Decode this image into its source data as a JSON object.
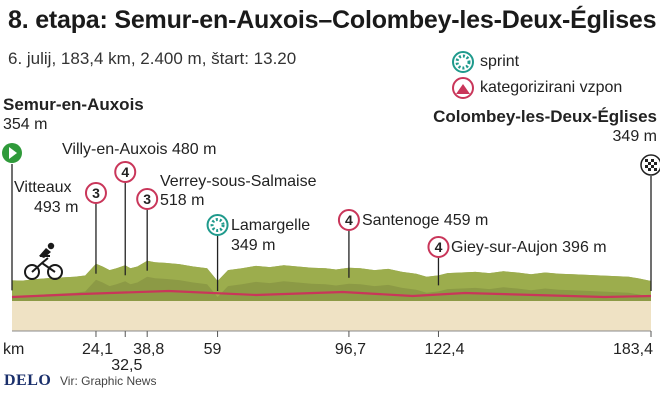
{
  "header": {
    "title": "8. etapa: Semur-en-Auxois–Colombey-les-Deux-Églises",
    "subtitle": "6. julij, 183,4 km, 2.400 m, štart: 13.20"
  },
  "legend": {
    "sprint": "sprint",
    "climb": "kategorizirani vzpon"
  },
  "start": {
    "name": "Semur-en-Auxois",
    "alt": "354 m"
  },
  "finish": {
    "name": "Colombey-les-Deux-Églises",
    "alt": "349 m"
  },
  "points": [
    {
      "name": "Vitteaux",
      "alt": "493 m",
      "cat": "3"
    },
    {
      "name": "Villy-en-Auxois 480 m",
      "cat": "4"
    },
    {
      "name": "Verrey-sous-Salmaise",
      "alt": "518 m",
      "cat": "3"
    },
    {
      "name": "Lamargelle",
      "alt": "349 m"
    },
    {
      "name": "Santenoge 459 m",
      "cat": "4"
    },
    {
      "name": "Giey-sur-Aujon 396 m",
      "cat": "4"
    }
  ],
  "axis": {
    "unit": "km",
    "ticks": [
      "24,1",
      "32,5",
      "38,8",
      "59",
      "96,7",
      "122,4",
      "183,4"
    ]
  },
  "footer": {
    "logo": "DELO",
    "source": "Vir: Graphic News"
  },
  "colors": {
    "profile_band": "#8c9a45",
    "profile_top": "#9fb04f",
    "ground": "#efe2c4",
    "route_line": "#c9365a",
    "sprint": "#1f9a8c",
    "climb": "#c9365a"
  },
  "chart_data": {
    "type": "area",
    "title": "8. etapa: Semur-en-Auxois–Colombey-les-Deux-Églises",
    "xlabel": "km",
    "ylabel": "",
    "xlim": [
      0,
      183.4
    ],
    "markers": [
      {
        "km": 24.1,
        "name": "Vitteaux",
        "alt_m": 493,
        "kind": "climb",
        "category": 3
      },
      {
        "km": 32.5,
        "name": "Villy-en-Auxois",
        "alt_m": 480,
        "kind": "climb",
        "category": 4
      },
      {
        "km": 38.8,
        "name": "Verrey-sous-Salmaise",
        "alt_m": 518,
        "kind": "climb",
        "category": 3
      },
      {
        "km": 59,
        "name": "Lamargelle",
        "alt_m": 349,
        "kind": "sprint"
      },
      {
        "km": 96.7,
        "name": "Santenoge",
        "alt_m": 459,
        "kind": "climb",
        "category": 4
      },
      {
        "km": 122.4,
        "name": "Giey-sur-Aujon",
        "alt_m": 396,
        "kind": "climb",
        "category": 4
      },
      {
        "km": 0,
        "name": "Semur-en-Auxois",
        "alt_m": 354,
        "kind": "start"
      },
      {
        "km": 183.4,
        "name": "Colombey-les-Deux-Églises",
        "alt_m": 349,
        "kind": "finish"
      }
    ],
    "profile": {
      "x": [
        0,
        3,
        6,
        10,
        14,
        18,
        21,
        24.1,
        26,
        28,
        30,
        32.5,
        34,
        36,
        38.8,
        41,
        44,
        48,
        52,
        56,
        59,
        62,
        66,
        70,
        74,
        78,
        82,
        86,
        90,
        93,
        96.7,
        100,
        104,
        108,
        112,
        116,
        119,
        122.4,
        125,
        129,
        133,
        137,
        141,
        145,
        149,
        153,
        157,
        161,
        165,
        169,
        173,
        177,
        180,
        183.4
      ],
      "y": [
        354,
        352,
        362,
        372,
        378,
        384,
        395,
        493,
        470,
        440,
        455,
        480,
        455,
        470,
        518,
        505,
        500,
        490,
        470,
        455,
        349,
        440,
        455,
        475,
        465,
        480,
        470,
        460,
        455,
        445,
        459,
        455,
        440,
        450,
        425,
        410,
        385,
        396,
        415,
        420,
        425,
        415,
        430,
        420,
        405,
        420,
        410,
        405,
        400,
        395,
        390,
        385,
        370,
        349
      ]
    }
  }
}
